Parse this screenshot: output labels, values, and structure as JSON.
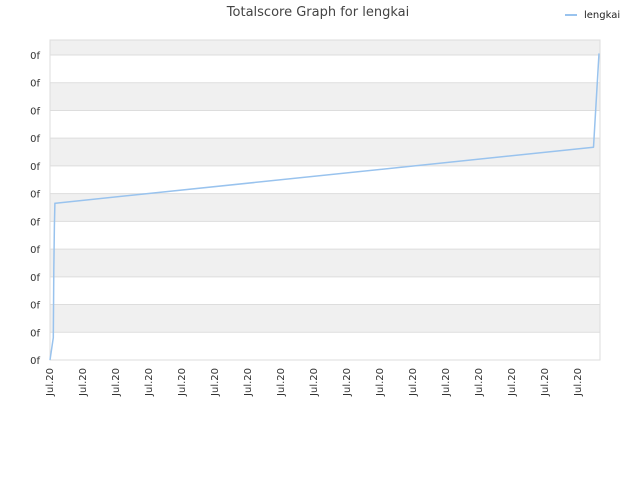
{
  "chart_data": {
    "type": "line",
    "title": "Totalscore Graph for lengkai",
    "xlabel": "",
    "ylabel": "",
    "grid": true,
    "legend_position": "top-right",
    "x_tick_labels": [
      "Jul.20",
      "Jul.20",
      "Jul.20",
      "Jul.20",
      "Jul.20",
      "Jul.20",
      "Jul.20",
      "Jul.20",
      "Jul.20",
      "Jul.20",
      "Jul.20",
      "Jul.20",
      "Jul.20",
      "Jul.20",
      "Jul.20",
      "Jul.20",
      "Jul.20"
    ],
    "y_tick_labels": [
      "0f",
      "0f",
      "0f",
      "0f",
      "0f",
      "0f",
      "0f",
      "0f",
      "0f",
      "0f",
      "0f",
      "0f"
    ],
    "series": [
      {
        "name": "lengkai",
        "color": "#99c3ee",
        "x": [
          0,
          0.006,
          0.007,
          0.008,
          0.009,
          0.01,
          0.99,
          0.99,
          1.0
        ],
        "y": [
          0,
          0.07,
          0.28,
          0.42,
          0.49,
          0.49,
          0.665,
          0.665,
          0.958
        ]
      }
    ]
  }
}
